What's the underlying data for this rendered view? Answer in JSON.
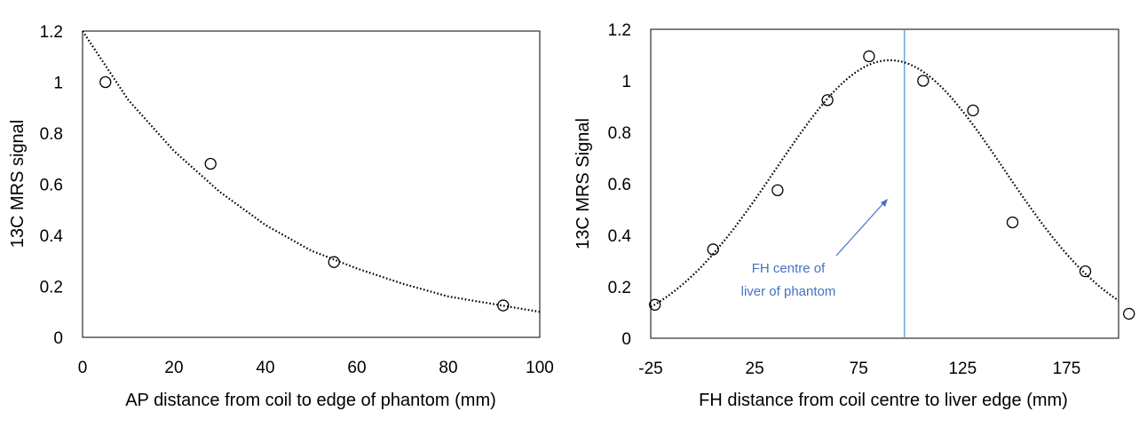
{
  "chart_data": [
    {
      "type": "scatter",
      "title": "",
      "xlabel": "AP distance from coil to edge of phantom (mm)",
      "ylabel": "13C MRS signal",
      "xlim": [
        0,
        100
      ],
      "ylim": [
        0,
        1.2
      ],
      "xticks": [
        0,
        20,
        40,
        60,
        80,
        100
      ],
      "yticks": [
        0,
        0.2,
        0.4,
        0.6,
        0.8,
        1,
        1.2
      ],
      "xtick_labels": [
        "0",
        "20",
        "40",
        "60",
        "80",
        "100"
      ],
      "ytick_labels": [
        "0",
        "0.2",
        "0.4",
        "0.6",
        "0.8",
        "1",
        "1.2"
      ],
      "grid": false,
      "series": [
        {
          "marker": "open-circle",
          "x": [
            5,
            28,
            55,
            92
          ],
          "y": [
            1.0,
            0.68,
            0.295,
            0.125
          ]
        }
      ],
      "trendline": {
        "style": "dotted",
        "model": "exponential",
        "x": [
          0,
          10,
          20,
          30,
          40,
          50,
          60,
          70,
          80,
          90,
          100
        ],
        "y": [
          1.2,
          0.93,
          0.73,
          0.57,
          0.44,
          0.34,
          0.27,
          0.21,
          0.16,
          0.13,
          0.1
        ]
      }
    },
    {
      "type": "scatter",
      "title": "",
      "xlabel": "FH distance from coil centre to liver edge (mm)",
      "ylabel": "13C MRS Signal",
      "xlim": [
        -25,
        200
      ],
      "ylim": [
        0,
        1.2
      ],
      "xticks": [
        -25,
        25,
        75,
        125,
        175
      ],
      "yticks": [
        0,
        0.2,
        0.4,
        0.6,
        0.8,
        1,
        1.2
      ],
      "xtick_labels": [
        "-25",
        "25",
        "75",
        "125",
        "175"
      ],
      "ytick_labels": [
        "0",
        "0.2",
        "0.4",
        "0.6",
        "0.8",
        "1",
        "1.2"
      ],
      "grid": false,
      "series": [
        {
          "marker": "open-circle",
          "x": [
            -23,
            5,
            36,
            60,
            80,
            106,
            130,
            149,
            184,
            205
          ],
          "y": [
            0.13,
            0.345,
            0.575,
            0.925,
            1.095,
            1.0,
            0.885,
            0.45,
            0.26,
            0.095
          ]
        }
      ],
      "trendline": {
        "style": "dotted",
        "model": "gaussian",
        "amplitude": 1.08,
        "center": 90,
        "sigma": 55,
        "offset": 0.0
      },
      "vertical_line": {
        "x": 97,
        "color": "#5b9bd5"
      },
      "annotation": {
        "lines": [
          "FH centre of",
          "liver of phantom"
        ],
        "color": "#4472c4"
      }
    }
  ]
}
